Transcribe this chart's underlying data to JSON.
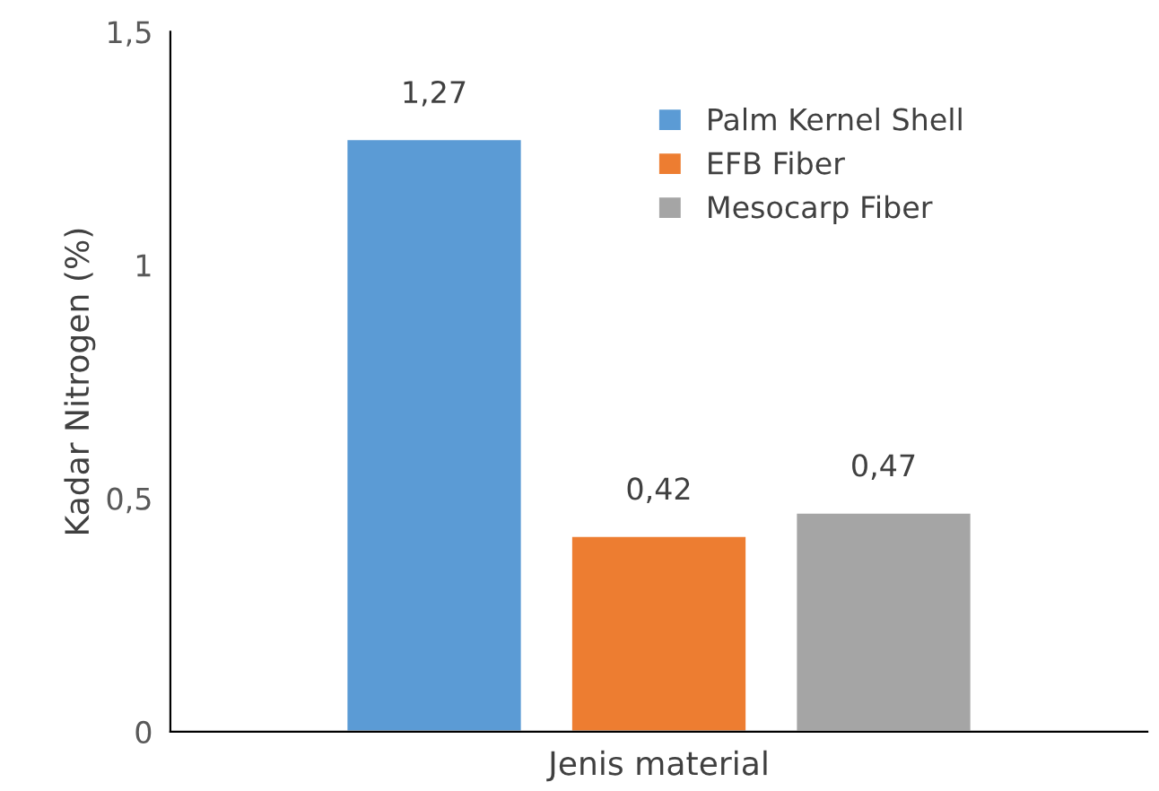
{
  "chart_data": {
    "type": "bar",
    "xlabel": "Jenis material",
    "ylabel": "Kadar Nitrogen (%)",
    "categories": [
      null
    ],
    "series": [
      {
        "name": "Palm Kernel Shell",
        "color": "#5b9bd5",
        "values": [
          1.27
        ],
        "value_labels": [
          "1,27"
        ]
      },
      {
        "name": "EFB Fiber",
        "color": "#ed7d31",
        "values": [
          0.42
        ],
        "value_labels": [
          "0,42"
        ]
      },
      {
        "name": "Mesocarp Fiber",
        "color": "#a5a5a5",
        "values": [
          0.47
        ],
        "value_labels": [
          "0,47"
        ]
      }
    ],
    "ylim": [
      0,
      1.5
    ],
    "yticks": [
      0,
      {
        "value": 0.5,
        "label": "0,5"
      },
      1,
      {
        "value": 1.5,
        "label": "1,5"
      }
    ],
    "grid": false,
    "legend": "top right"
  }
}
